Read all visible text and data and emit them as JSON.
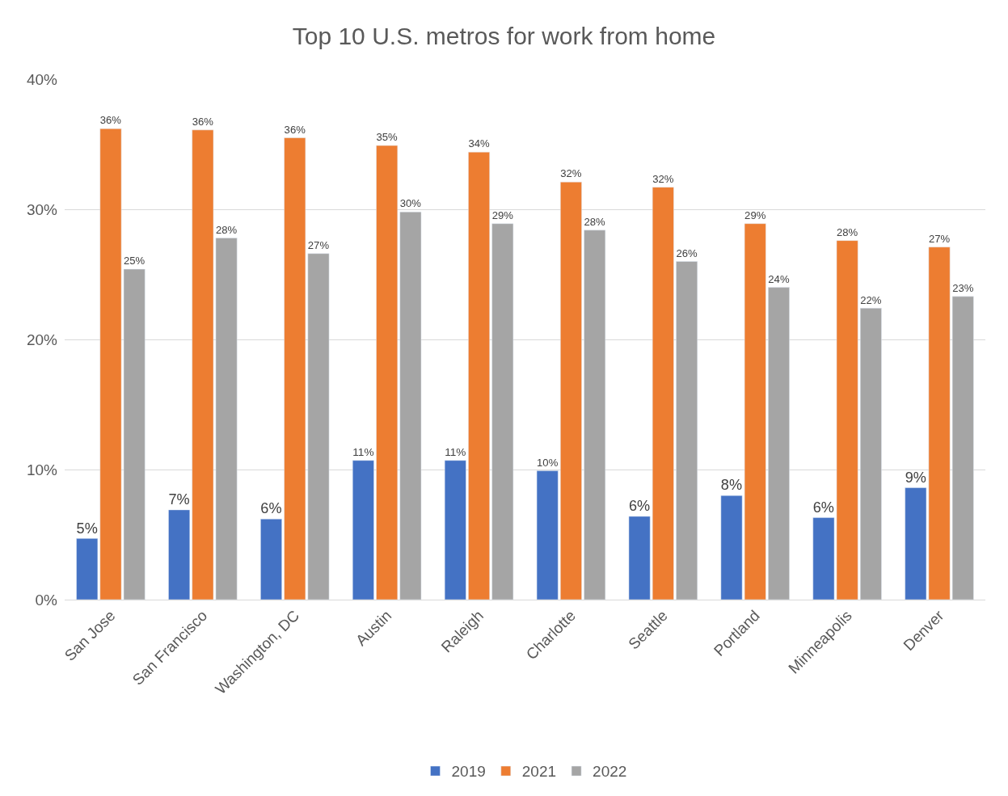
{
  "chart_data": {
    "type": "bar",
    "title": "Top 10 U.S. metros for work from home",
    "categories": [
      "San Jose",
      "San Francisco",
      "Washington, DC",
      "Austin",
      "Raleigh",
      "Charlotte",
      "Seattle",
      "Portland",
      "Minneapolis",
      "Denver"
    ],
    "series": [
      {
        "name": "2019",
        "color": "#4472c4",
        "values": [
          4.7,
          6.9,
          6.2,
          10.7,
          10.7,
          9.9,
          6.4,
          8.0,
          6.3,
          8.6
        ],
        "value_labels": [
          "5%",
          "7%",
          "6%",
          "11%",
          "11%",
          "10%",
          "6%",
          "8%",
          "6%",
          "9%"
        ]
      },
      {
        "name": "2021",
        "color": "#ed7d31",
        "values": [
          36.2,
          36.1,
          35.5,
          34.9,
          34.4,
          32.1,
          31.7,
          28.9,
          27.6,
          27.1
        ],
        "value_labels": [
          "36%",
          "36%",
          "36%",
          "35%",
          "34%",
          "32%",
          "32%",
          "29%",
          "28%",
          "27%"
        ]
      },
      {
        "name": "2022",
        "color": "#a5a5a5",
        "values": [
          25.4,
          27.8,
          26.6,
          29.8,
          28.9,
          28.4,
          26.0,
          24.0,
          22.4,
          23.3
        ],
        "value_labels": [
          "25%",
          "28%",
          "27%",
          "30%",
          "29%",
          "28%",
          "26%",
          "24%",
          "22%",
          "23%"
        ]
      }
    ],
    "ylim": [
      0,
      40
    ],
    "yticks": [
      {
        "value": 0,
        "label": "0%"
      },
      {
        "value": 10,
        "label": "10%"
      },
      {
        "value": 20,
        "label": "20%"
      },
      {
        "value": 30,
        "label": "30%"
      },
      {
        "value": 40,
        "label": "40%"
      }
    ],
    "grid": "y",
    "legend": "bottom"
  }
}
